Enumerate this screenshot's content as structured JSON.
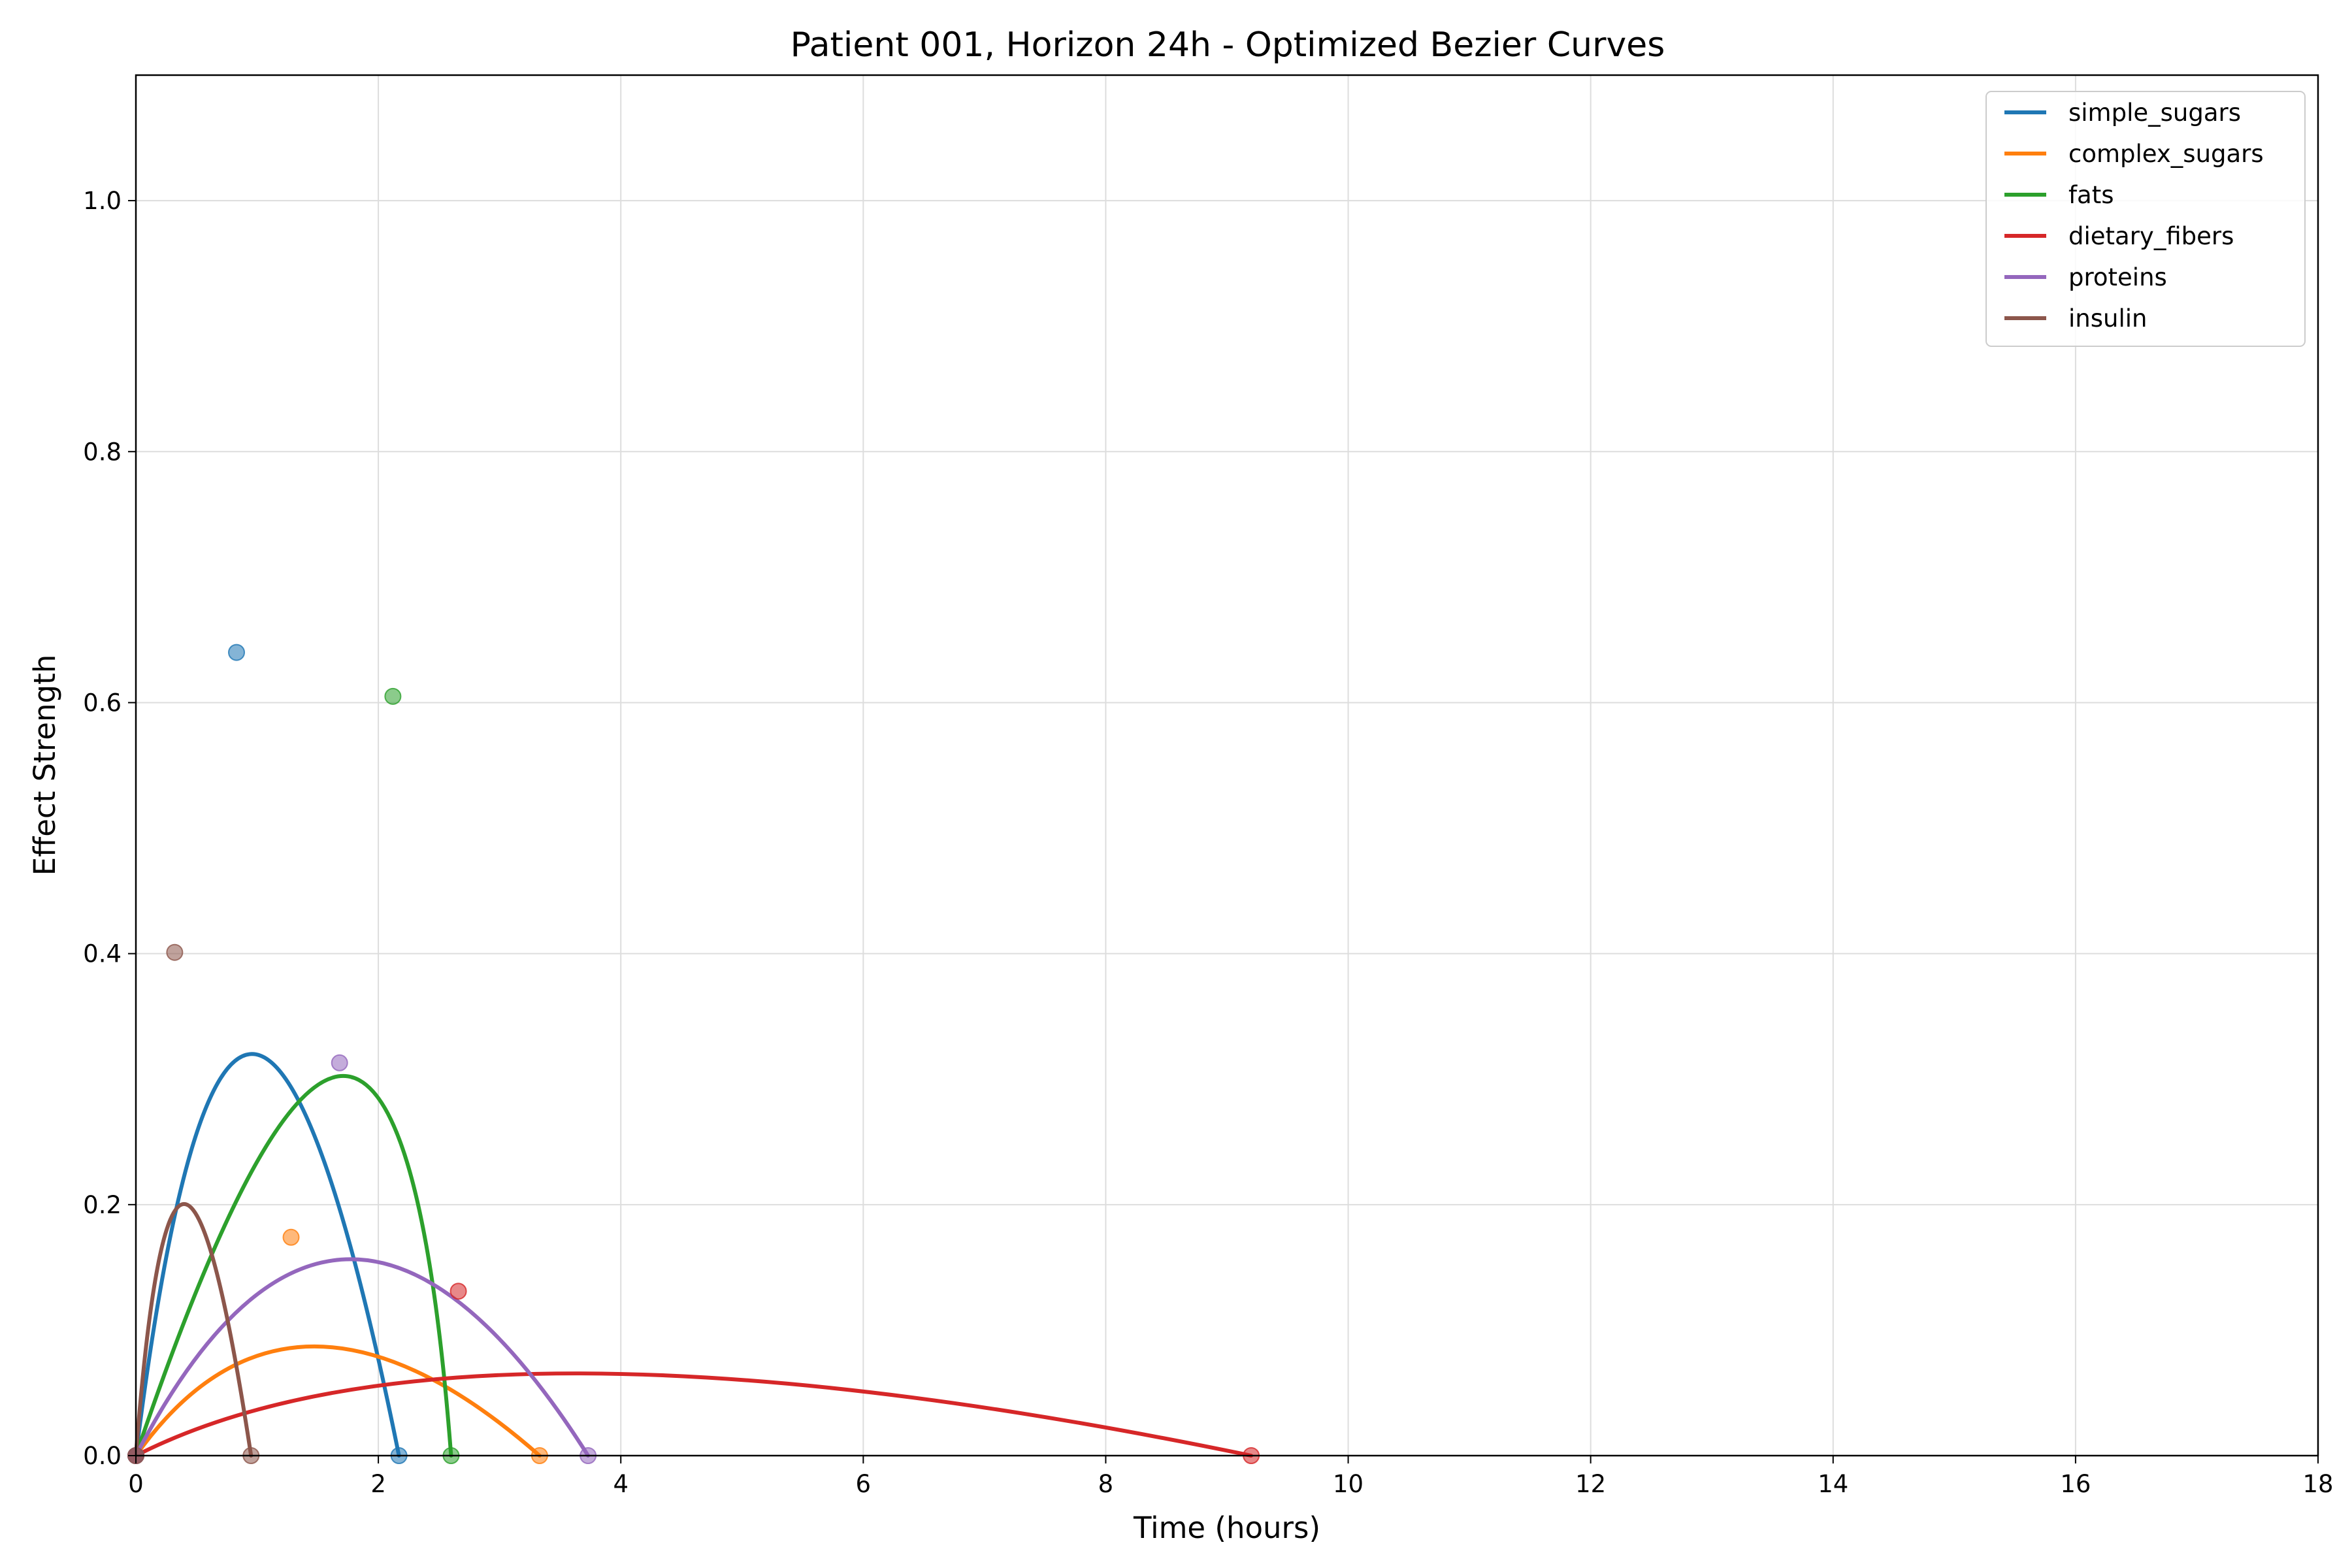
{
  "chart_data": {
    "type": "line",
    "title": "Patient 001, Horizon 24h - Optimized Bezier Curves",
    "xlabel": "Time (hours)",
    "ylabel": "Effect Strength",
    "xlim": [
      0,
      18
    ],
    "ylim": [
      0,
      1.1
    ],
    "xticks": [
      0,
      2,
      4,
      6,
      8,
      10,
      12,
      14,
      16,
      18
    ],
    "xtick_labels": [
      "0",
      "2",
      "4",
      "6",
      "8",
      "10",
      "12",
      "14",
      "16",
      "18"
    ],
    "yticks": [
      0.0,
      0.2,
      0.4,
      0.6,
      0.8,
      1.0
    ],
    "ytick_labels": [
      "0.0",
      "0.2",
      "0.4",
      "0.6",
      "0.8",
      "1.0"
    ],
    "grid": true,
    "legend_position": "top-right",
    "series": [
      {
        "name": "simple_sugars",
        "color": "#1f77b4",
        "bezier_control_points": [
          [
            0,
            0
          ],
          [
            0.83,
            0.64
          ],
          [
            2.17,
            0
          ]
        ],
        "peak": [
          0.97,
          0.32
        ]
      },
      {
        "name": "complex_sugars",
        "color": "#ff7f0e",
        "bezier_control_points": [
          [
            0,
            0
          ],
          [
            1.28,
            0.174
          ],
          [
            3.33,
            0
          ]
        ],
        "peak": [
          1.46,
          0.087
        ]
      },
      {
        "name": "fats",
        "color": "#2ca02c",
        "bezier_control_points": [
          [
            0,
            0
          ],
          [
            2.12,
            0.605
          ],
          [
            2.6,
            0
          ]
        ],
        "peak": [
          1.72,
          0.302
        ]
      },
      {
        "name": "dietary_fibers",
        "color": "#d62728",
        "bezier_control_points": [
          [
            0,
            0
          ],
          [
            2.66,
            0.131
          ],
          [
            9.2,
            0
          ]
        ],
        "peak": [
          3.66,
          0.066
        ]
      },
      {
        "name": "proteins",
        "color": "#9467bd",
        "bezier_control_points": [
          [
            0,
            0
          ],
          [
            1.68,
            0.313
          ],
          [
            3.73,
            0
          ]
        ],
        "peak": [
          1.76,
          0.157
        ]
      },
      {
        "name": "insulin",
        "color": "#8c564b",
        "bezier_control_points": [
          [
            0,
            0
          ],
          [
            0.32,
            0.401
          ],
          [
            0.95,
            0
          ]
        ],
        "peak": [
          0.41,
          0.2
        ]
      }
    ]
  }
}
